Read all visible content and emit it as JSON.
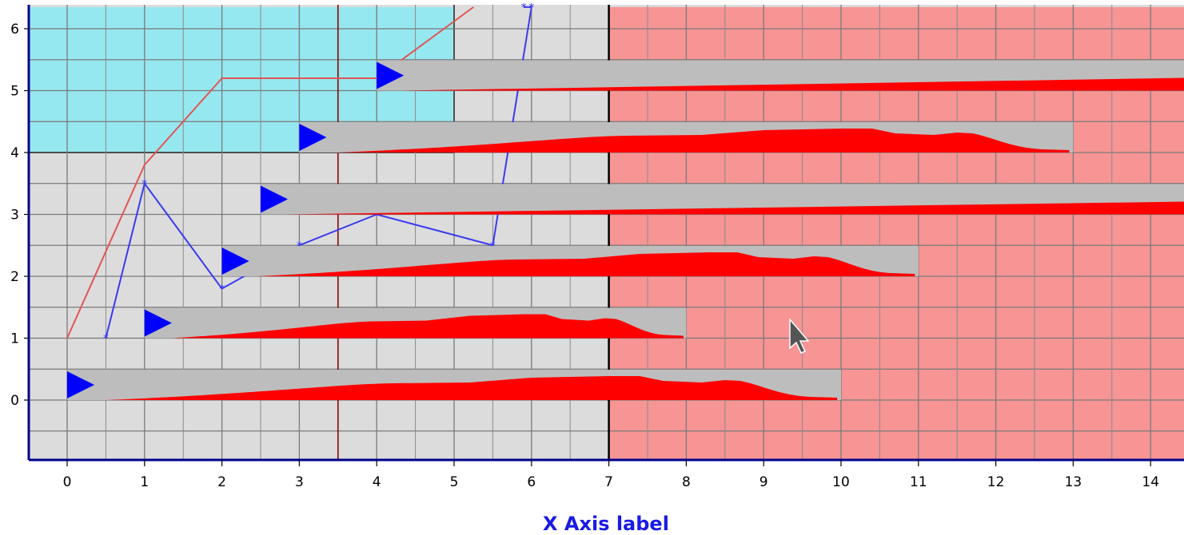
{
  "chart_data": {
    "type": "line",
    "xlabel": "X Axis label",
    "ylabel": "",
    "xlim": [
      -0.5,
      14.5
    ],
    "ylim": [
      -1,
      6.35
    ],
    "x_ticks": [
      "0",
      "1",
      "2",
      "3",
      "4",
      "5",
      "6",
      "7",
      "8",
      "9",
      "10",
      "11",
      "12",
      "13",
      "14"
    ],
    "y_ticks": [
      "0",
      "1",
      "2",
      "3",
      "4",
      "5",
      "6"
    ],
    "grid": true,
    "regions": [
      {
        "name": "cyan-region",
        "color": "#96e8f0",
        "x": [
          -0.5,
          5
        ],
        "y": [
          4,
          6.35
        ]
      },
      {
        "name": "red-region",
        "color": "#f79494",
        "x": [
          7,
          14.5
        ],
        "y": [
          -1,
          6.35
        ]
      }
    ],
    "vertical_lines": [
      {
        "x": 3.5,
        "color": "#8b1a1a"
      },
      {
        "x": 7,
        "color": "#000000"
      }
    ],
    "series": [
      {
        "color": "#e05555",
        "x": [
          0,
          1,
          2,
          4,
          5.25
        ],
        "y": [
          1,
          3.8,
          5.2,
          5.2,
          6.35
        ]
      },
      {
        "color": "#3a3af0",
        "marker": "star",
        "x": [
          0.5,
          1,
          2,
          3,
          4,
          5.5,
          6,
          5.9
        ],
        "y": [
          1,
          3.5,
          1.8,
          2.5,
          3,
          2.5,
          6.35,
          6.35
        ]
      }
    ],
    "sparkline_bars": [
      {
        "x_start": 0,
        "x_end": 10,
        "y": 0,
        "color": "#ff0000",
        "play": true
      },
      {
        "x_start": 1,
        "x_end": 8,
        "y": 1,
        "color": "#ff0000",
        "play": true
      },
      {
        "x_start": 2,
        "x_end": 11,
        "y": 2,
        "color": "#ff0000",
        "play": true
      },
      {
        "x_start": 2.5,
        "x_end": 14.5,
        "y": 3,
        "color": "#ff0000",
        "play": true,
        "flat": true
      },
      {
        "x_start": 3,
        "x_end": 13,
        "y": 4,
        "color": "#ff0000",
        "play": true
      },
      {
        "x_start": 4,
        "x_end": 14.5,
        "y": 5,
        "color": "#ff0000",
        "play": true,
        "flat": true
      }
    ]
  },
  "cursor": {
    "icon": "mouse-pointer-icon"
  }
}
